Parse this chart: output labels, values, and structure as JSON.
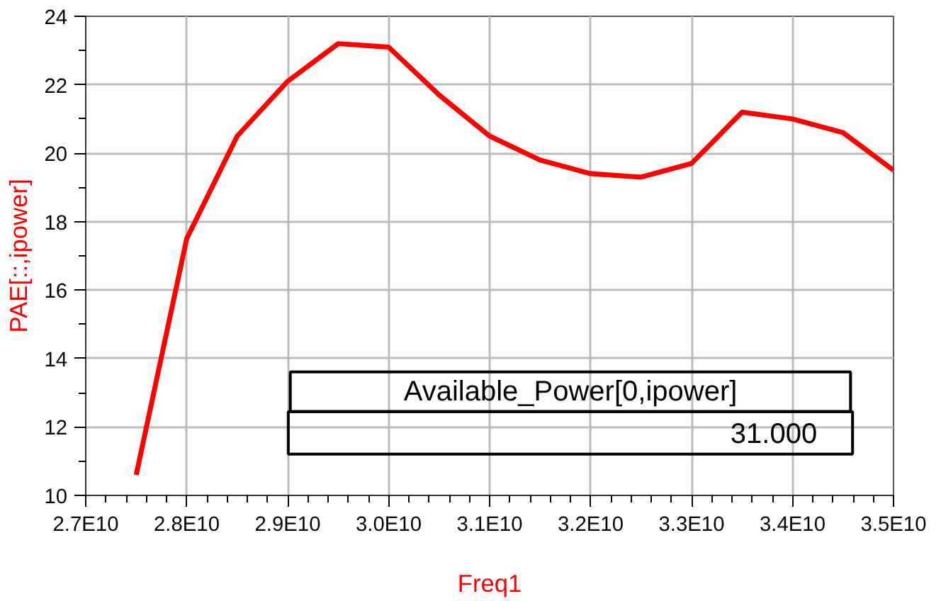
{
  "chart_data": {
    "type": "line",
    "xlabel": "Freq1",
    "ylabel": "PAE[::,ipower]",
    "x": [
      27500000000.0,
      28000000000.0,
      28500000000.0,
      29000000000.0,
      29500000000.0,
      30000000000.0,
      30500000000.0,
      31000000000.0,
      31500000000.0,
      32000000000.0,
      32500000000.0,
      33000000000.0,
      33500000000.0,
      34000000000.0,
      34500000000.0,
      35000000000.0
    ],
    "series": [
      {
        "color": "#ff0000",
        "values": [
          10.6,
          17.5,
          20.5,
          22.1,
          23.2,
          23.1,
          21.7,
          20.5,
          19.8,
          19.4,
          19.3,
          19.7,
          21.2,
          21.0,
          20.6,
          19.5
        ]
      }
    ],
    "xlim": [
      27000000000.0,
      35000000000.0
    ],
    "xticks": [
      {
        "value": 27000000000.0,
        "label": "2.7E10"
      },
      {
        "value": 28000000000.0,
        "label": "2.8E10"
      },
      {
        "value": 29000000000.0,
        "label": "2.9E10"
      },
      {
        "value": 30000000000.0,
        "label": "3.0E10"
      },
      {
        "value": 31000000000.0,
        "label": "3.1E10"
      },
      {
        "value": 32000000000.0,
        "label": "3.2E10"
      },
      {
        "value": 33000000000.0,
        "label": "3.3E10"
      },
      {
        "value": 34000000000.0,
        "label": "3.4E10"
      },
      {
        "value": 35000000000.0,
        "label": "3.5E10"
      }
    ],
    "ylim": [
      10,
      24
    ],
    "yticks": [
      10,
      12,
      14,
      16,
      18,
      20,
      22,
      24
    ],
    "grid": true,
    "marker": "none",
    "line_style": "solid",
    "annotations": [
      "Available_Power[0,ipower]",
      "31.000"
    ]
  }
}
